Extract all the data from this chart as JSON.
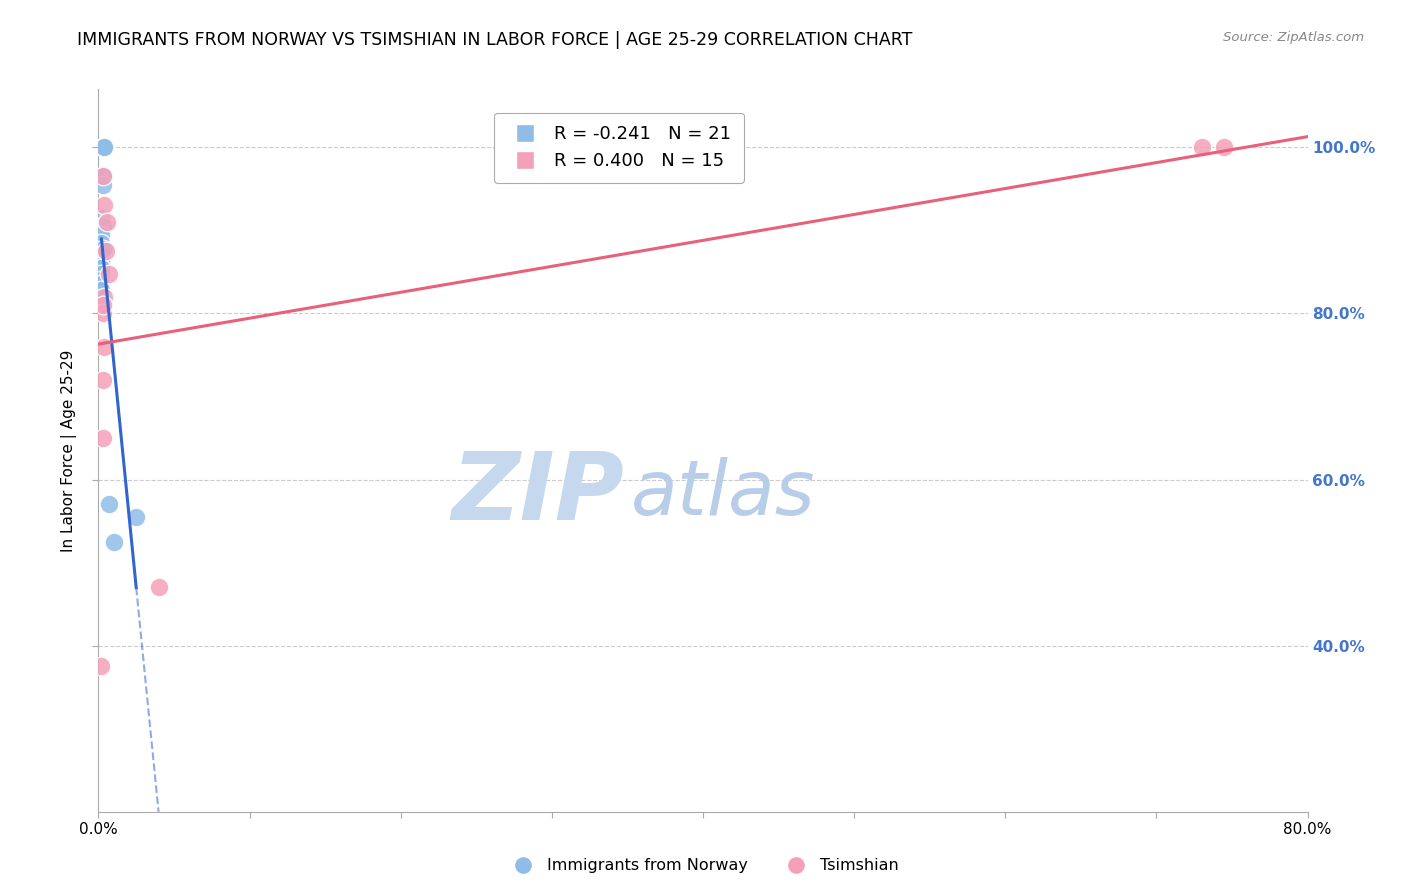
{
  "title": "IMMIGRANTS FROM NORWAY VS TSIMSHIAN IN LABOR FORCE | AGE 25-29 CORRELATION CHART",
  "source": "Source: ZipAtlas.com",
  "ylabel": "In Labor Force | Age 25-29",
  "xmin": 0.0,
  "xmax": 0.8,
  "ymin": 0.2,
  "ymax": 1.07,
  "yticks": [
    0.4,
    0.6,
    0.8,
    1.0
  ],
  "ytick_labels": [
    "40.0%",
    "60.0%",
    "80.0%",
    "100.0%"
  ],
  "norway_x": [
    0.003,
    0.004,
    0.004,
    0.003,
    0.003,
    0.002,
    0.003,
    0.002,
    0.002,
    0.002,
    0.002,
    0.002,
    0.002,
    0.002,
    0.002,
    0.002,
    0.002,
    0.007,
    0.01,
    0.025,
    0.003
  ],
  "norway_y": [
    1.0,
    1.0,
    1.0,
    0.965,
    0.955,
    0.915,
    0.905,
    0.895,
    0.885,
    0.875,
    0.87,
    0.862,
    0.855,
    0.848,
    0.84,
    0.835,
    0.828,
    0.57,
    0.525,
    0.555,
    0.878
  ],
  "tsimshian_x": [
    0.003,
    0.004,
    0.006,
    0.005,
    0.007,
    0.004,
    0.003,
    0.004,
    0.003,
    0.003,
    0.73,
    0.745,
    0.002,
    0.04,
    0.003
  ],
  "tsimshian_y": [
    0.965,
    0.93,
    0.91,
    0.875,
    0.848,
    0.82,
    0.8,
    0.76,
    0.72,
    0.81,
    1.0,
    1.0,
    0.375,
    0.47,
    0.65
  ],
  "norway_R": -0.241,
  "norway_N": 21,
  "tsimshian_R": 0.4,
  "tsimshian_N": 15,
  "norway_color": "#90BDE8",
  "tsimshian_color": "#F4A0B8",
  "norway_line_color": "#3366CC",
  "tsimshian_line_color": "#E8607A",
  "background_color": "#FFFFFF",
  "grid_color": "#CCCCCC",
  "axis_color": "#AAAAAA",
  "right_tick_color": "#4477CC",
  "watermark_zip_color": "#C5D8EE",
  "watermark_atlas_color": "#B8CEE8",
  "title_fontsize": 12.5,
  "legend_fontsize": 13,
  "axis_label_fontsize": 11,
  "tick_fontsize": 11
}
